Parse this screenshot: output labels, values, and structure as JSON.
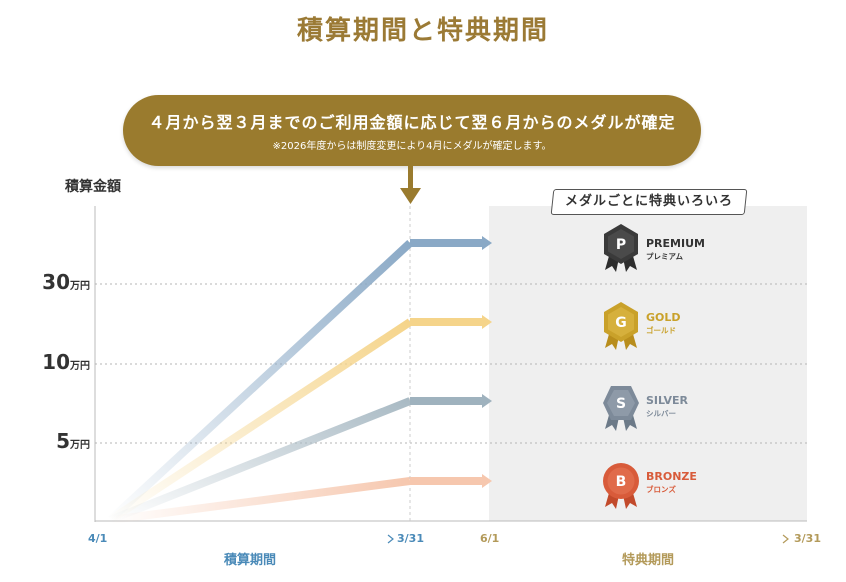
{
  "title": "積算期間と特典期間",
  "banner": {
    "main": "４月から翌３月までのご利用金額に応じて翌６月からのメダルが確定",
    "note": "※2026年度からは制度変更により4月にメダルが確定します。"
  },
  "y_axis_label": "積算金額",
  "y_ticks": [
    {
      "num": "30",
      "unit": "万円"
    },
    {
      "num": "10",
      "unit": "万円"
    },
    {
      "num": "5",
      "unit": "万円"
    }
  ],
  "benefit_tag": "メダルごとに特典いろいろ",
  "medals": [
    {
      "letter": "P",
      "name": "PREMIUM",
      "sub": "プレミアム",
      "color": "#3a3a3a",
      "text_color": "#333333"
    },
    {
      "letter": "G",
      "name": "GOLD",
      "sub": "ゴールド",
      "color": "#c9a12a",
      "text_color": "#c9a12a"
    },
    {
      "letter": "S",
      "name": "SILVER",
      "sub": "シルバー",
      "color": "#7d8a99",
      "text_color": "#7d8a99"
    },
    {
      "letter": "B",
      "name": "BRONZE",
      "sub": "ブロンズ",
      "color": "#d85b3a",
      "text_color": "#d85b3a"
    }
  ],
  "timeline": {
    "accumulation_start": "4/1",
    "accumulation_end": "3/31",
    "accumulation_label": "積算期間",
    "benefit_start": "6/1",
    "benefit_end": "3/31",
    "benefit_label": "特典期間"
  },
  "colors": {
    "gold_brand": "#9a7b2e",
    "premium_line": "#8aa9c6",
    "gold_line": "#f5d48a",
    "silver_line": "#9fb2be",
    "bronze_line": "#f6c7ae",
    "accumulation_blue": "#4a8ab8",
    "benefit_tan": "#b39a5a"
  }
}
